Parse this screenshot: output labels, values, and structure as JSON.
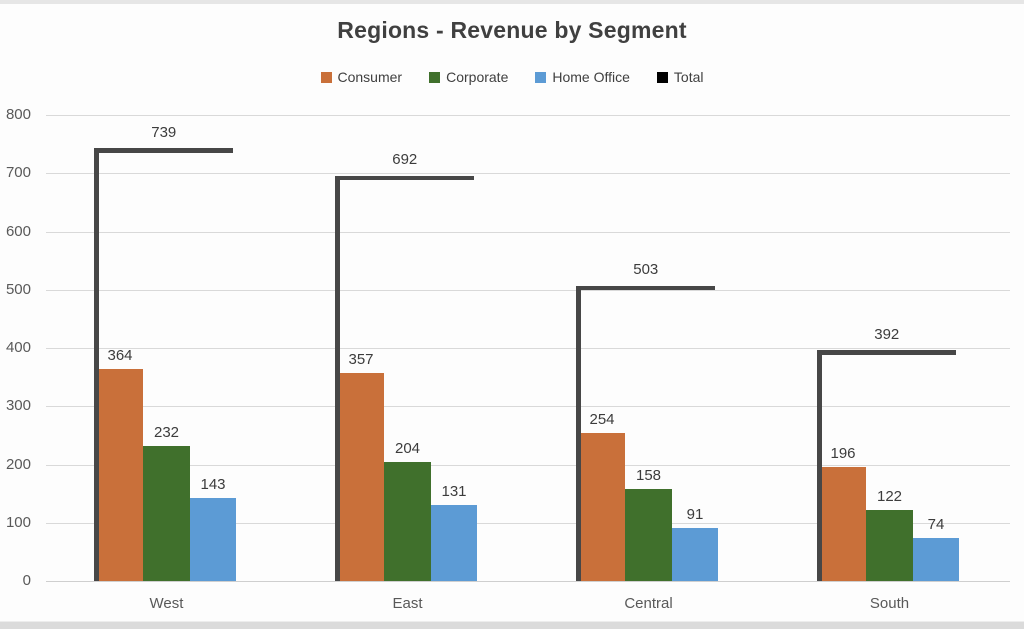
{
  "chart": {
    "title": "Regions - Revenue by Segment"
  },
  "chart_data": {
    "type": "bar",
    "title": "Regions - Revenue by Segment",
    "xlabel": "",
    "ylabel": "",
    "categories": [
      "West",
      "East",
      "Central",
      "South"
    ],
    "series": [
      {
        "name": "Consumer",
        "type": "bar",
        "color": "#C9703A",
        "values": [
          364,
          357,
          254,
          196
        ]
      },
      {
        "name": "Corporate",
        "type": "bar",
        "color": "#40702C",
        "values": [
          232,
          204,
          158,
          122
        ]
      },
      {
        "name": "Home Office",
        "type": "bar",
        "color": "#5C9BD5",
        "values": [
          143,
          131,
          91,
          74
        ]
      },
      {
        "name": "Total",
        "type": "bracket-line",
        "color": "#474747",
        "legend_color": "#000000",
        "values": [
          739,
          692,
          503,
          392
        ]
      }
    ],
    "ylim": [
      0,
      800
    ],
    "ytick_step": 100,
    "ytick_labels": [
      "0",
      "100",
      "200",
      "300",
      "400",
      "500",
      "600",
      "700",
      "800"
    ],
    "grid": true,
    "legend_position": "top",
    "data_labels": true
  },
  "colors": {
    "consumer": "#C9703A",
    "corporate": "#40702C",
    "home_office": "#5C9BD5",
    "total_line": "#474747",
    "total_legend_swatch": "#000000",
    "gridline": "#D9D9D9",
    "text_primary": "#3C3C3C",
    "text_secondary": "#595959",
    "background": "#FDFDFD"
  }
}
